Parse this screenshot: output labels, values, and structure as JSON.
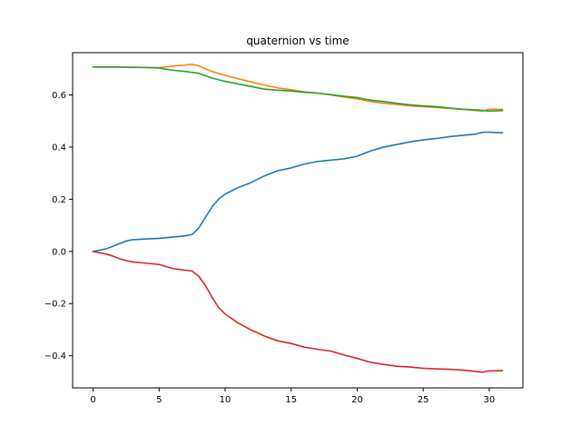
{
  "chart_data": {
    "type": "line",
    "title": "quaternion vs time",
    "xlabel": "",
    "ylabel": "",
    "xlim": [
      -1.55,
      32.55
    ],
    "ylim": [
      -0.523,
      0.762
    ],
    "xticks": [
      0,
      5,
      10,
      15,
      20,
      25,
      30
    ],
    "xtick_labels": [
      "0",
      "5",
      "10",
      "15",
      "20",
      "25",
      "30"
    ],
    "yticks": [
      -0.4,
      -0.2,
      0.0,
      0.2,
      0.4,
      0.6
    ],
    "ytick_labels": [
      "−0.4",
      "−0.2",
      "0.0",
      "0.2",
      "0.4",
      "0.6"
    ],
    "grid": false,
    "legend": "none",
    "series": [
      {
        "color": "#1f77b4",
        "x": [
          0,
          1,
          1.5,
          2,
          2.5,
          3,
          4,
          5,
          6,
          7,
          7.5,
          8,
          8.5,
          9,
          9.5,
          10,
          11,
          12,
          13,
          14,
          15,
          16,
          17,
          18,
          19,
          20,
          21,
          22,
          23,
          24,
          25,
          26,
          27,
          28,
          29,
          29.5,
          30,
          31
        ],
        "y": [
          0.0,
          0.01,
          0.02,
          0.03,
          0.04,
          0.045,
          0.048,
          0.05,
          0.055,
          0.06,
          0.065,
          0.09,
          0.13,
          0.17,
          0.2,
          0.22,
          0.245,
          0.265,
          0.29,
          0.31,
          0.32,
          0.335,
          0.345,
          0.35,
          0.355,
          0.365,
          0.385,
          0.4,
          0.41,
          0.42,
          0.428,
          0.433,
          0.44,
          0.445,
          0.45,
          0.457,
          0.457,
          0.455
        ]
      },
      {
        "color": "#ff7f0e",
        "x": [
          0,
          2,
          4,
          5,
          6,
          7,
          7.5,
          8,
          8.5,
          9,
          10,
          11,
          12,
          13,
          14,
          15,
          16,
          17,
          18,
          19,
          20,
          21,
          22,
          23,
          24,
          25,
          26,
          27,
          28,
          29,
          29.5,
          30,
          31
        ],
        "y": [
          0.707,
          0.707,
          0.705,
          0.705,
          0.71,
          0.715,
          0.717,
          0.712,
          0.7,
          0.69,
          0.675,
          0.662,
          0.65,
          0.637,
          0.627,
          0.62,
          0.612,
          0.607,
          0.6,
          0.592,
          0.585,
          0.575,
          0.568,
          0.563,
          0.558,
          0.555,
          0.552,
          0.548,
          0.545,
          0.54,
          0.538,
          0.545,
          0.545
        ]
      },
      {
        "color": "#2ca02c",
        "x": [
          0,
          2,
          4,
          5,
          6,
          7,
          8,
          9,
          10,
          11,
          12,
          13,
          14,
          15,
          16,
          17,
          18,
          19,
          20,
          21,
          22,
          23,
          24,
          25,
          26,
          27,
          28,
          29,
          30,
          31
        ],
        "y": [
          0.707,
          0.707,
          0.705,
          0.703,
          0.695,
          0.69,
          0.683,
          0.665,
          0.652,
          0.642,
          0.632,
          0.622,
          0.618,
          0.615,
          0.61,
          0.607,
          0.601,
          0.595,
          0.59,
          0.58,
          0.575,
          0.568,
          0.562,
          0.558,
          0.555,
          0.55,
          0.545,
          0.543,
          0.538,
          0.54
        ]
      },
      {
        "color": "#d62728",
        "x": [
          0,
          1,
          1.5,
          2,
          2.5,
          3,
          4,
          5,
          6,
          7,
          7.5,
          8,
          8.5,
          9,
          9.5,
          10,
          11,
          12,
          13,
          14,
          15,
          16,
          17,
          18,
          19,
          20,
          21,
          22,
          23,
          24,
          25,
          26,
          27,
          28,
          29,
          29.5,
          30,
          31
        ],
        "y": [
          0.0,
          -0.01,
          -0.018,
          -0.028,
          -0.035,
          -0.04,
          -0.045,
          -0.05,
          -0.065,
          -0.072,
          -0.075,
          -0.095,
          -0.13,
          -0.175,
          -0.215,
          -0.24,
          -0.275,
          -0.302,
          -0.325,
          -0.343,
          -0.353,
          -0.367,
          -0.375,
          -0.382,
          -0.397,
          -0.41,
          -0.425,
          -0.433,
          -0.44,
          -0.443,
          -0.448,
          -0.45,
          -0.452,
          -0.455,
          -0.46,
          -0.463,
          -0.458,
          -0.457
        ]
      }
    ]
  }
}
